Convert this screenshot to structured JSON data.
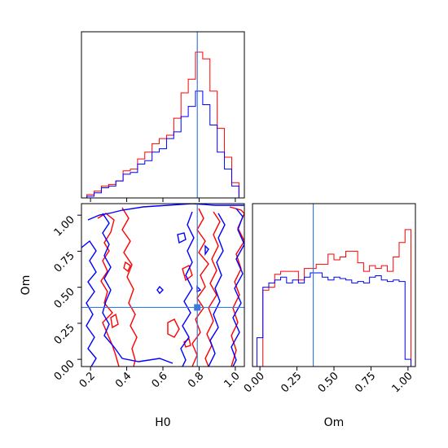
{
  "chart_data": [
    {
      "panel": "H0 marginal",
      "type": "histogram",
      "x_range": [
        0.15,
        1.05
      ],
      "bin_edges": [
        0.18,
        0.22,
        0.26,
        0.3,
        0.34,
        0.38,
        0.42,
        0.46,
        0.5,
        0.54,
        0.58,
        0.62,
        0.66,
        0.7,
        0.74,
        0.78,
        0.82,
        0.86,
        0.9,
        0.94,
        0.98,
        1.02
      ],
      "series": [
        {
          "color": "#ff0000",
          "values": [
            0.02,
            0.04,
            0.07,
            0.08,
            0.1,
            0.16,
            0.17,
            0.23,
            0.27,
            0.32,
            0.35,
            0.37,
            0.47,
            0.62,
            0.7,
            0.86,
            0.82,
            0.63,
            0.41,
            0.24,
            0.09
          ]
        },
        {
          "color": "#0000ff",
          "values": [
            0.01,
            0.03,
            0.06,
            0.07,
            0.1,
            0.14,
            0.15,
            0.2,
            0.22,
            0.27,
            0.29,
            0.35,
            0.39,
            0.48,
            0.54,
            0.63,
            0.55,
            0.43,
            0.27,
            0.17,
            0.07
          ]
        }
      ],
      "truth": 0.79
    },
    {
      "panel": "H0 vs Om contours",
      "type": "contour",
      "x_range": [
        0.15,
        1.05
      ],
      "y_range": [
        -0.05,
        1.08
      ],
      "xlabel": "H0",
      "ylabel": "Om",
      "xticks": [
        "0.2",
        "0.4",
        "0.6",
        "0.8",
        "1.0"
      ],
      "yticks": [
        "0.00",
        "0.25",
        "0.50",
        "0.75",
        "1.00"
      ],
      "truth": {
        "H0": 0.79,
        "Om": 0.36
      },
      "colors": [
        "#ff0000",
        "#0000ff"
      ]
    },
    {
      "panel": "Om marginal",
      "type": "histogram",
      "x_range": [
        -0.05,
        1.05
      ],
      "xlabel": "Om",
      "xticks": [
        "0.00",
        "0.25",
        "0.50",
        "0.75",
        "1.00"
      ],
      "bin_edges": [
        -0.02,
        0.02,
        0.06,
        0.1,
        0.14,
        0.18,
        0.22,
        0.26,
        0.3,
        0.34,
        0.38,
        0.42,
        0.46,
        0.5,
        0.54,
        0.58,
        0.62,
        0.66,
        0.7,
        0.74,
        0.78,
        0.82,
        0.86,
        0.9,
        0.94,
        0.98,
        1.02
      ],
      "series": [
        {
          "color": "#ff0000",
          "values": [
            0.0,
            0.53,
            0.55,
            0.64,
            0.66,
            0.66,
            0.66,
            0.6,
            0.68,
            0.68,
            0.71,
            0.71,
            0.78,
            0.74,
            0.76,
            0.8,
            0.8,
            0.72,
            0.66,
            0.7,
            0.68,
            0.7,
            0.66,
            0.76,
            0.86,
            0.95
          ]
        },
        {
          "color": "#0000ff",
          "values": [
            0.2,
            0.55,
            0.58,
            0.6,
            0.62,
            0.58,
            0.6,
            0.58,
            0.62,
            0.65,
            0.65,
            0.62,
            0.6,
            0.62,
            0.61,
            0.6,
            0.58,
            0.59,
            0.58,
            0.62,
            0.63,
            0.6,
            0.59,
            0.6,
            0.59,
            0.05
          ]
        }
      ],
      "truth": 0.36
    }
  ]
}
